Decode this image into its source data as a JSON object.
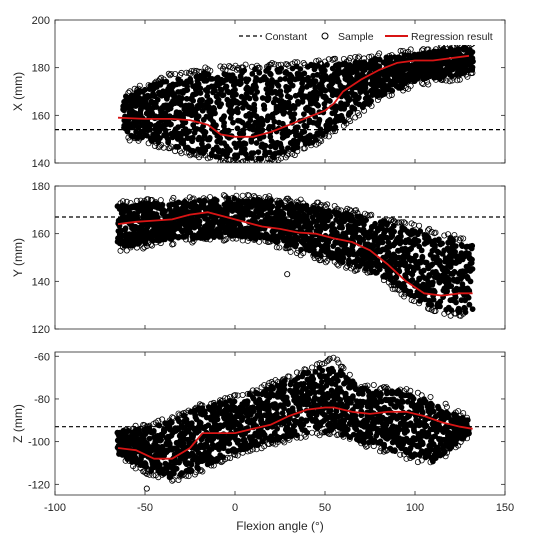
{
  "chart_data": [
    {
      "type": "scatter",
      "panel": "X",
      "ylabel": "X (mm)",
      "xlabel": "",
      "xlim": [
        -100,
        150
      ],
      "ylim": [
        140,
        200
      ],
      "xticks": [
        "-100",
        "-50",
        "0",
        "50",
        "100",
        "150"
      ],
      "xticklabels_visible": false,
      "yticks": [
        "140",
        "160",
        "180",
        "200"
      ],
      "constant": 154,
      "legend": {
        "placement": "top-right",
        "entries": [
          "Constant",
          "Sample",
          "Regression result"
        ]
      },
      "sample_bands": [
        {
          "x": [
            -62,
            -40,
            -20,
            0,
            20,
            40,
            60,
            80,
            100,
            120,
            132
          ],
          "y_low": [
            152,
            148,
            144,
            141,
            142,
            147,
            157,
            168,
            174,
            176,
            178
          ],
          "y_high": [
            168,
            175,
            178,
            179,
            180,
            181,
            182,
            184,
            186,
            188,
            189
          ]
        }
      ],
      "series": [
        {
          "name": "Regression result",
          "x": [
            -65,
            -50,
            -35,
            -25,
            -15,
            -8,
            0,
            10,
            20,
            30,
            40,
            50,
            55,
            60,
            70,
            80,
            90,
            100,
            110,
            120,
            130
          ],
          "y": [
            159,
            158.5,
            158.5,
            158,
            156,
            152,
            151,
            151,
            153,
            156,
            159,
            162,
            165,
            170,
            175,
            179,
            182,
            183,
            183,
            184,
            185
          ]
        }
      ],
      "outliers": []
    },
    {
      "type": "scatter",
      "panel": "Y",
      "ylabel": "Y (mm)",
      "xlabel": "",
      "xlim": [
        -100,
        150
      ],
      "ylim": [
        120,
        180
      ],
      "xticks": [
        "-100",
        "-50",
        "0",
        "50",
        "100",
        "150"
      ],
      "xticklabels_visible": false,
      "yticks": [
        "120",
        "140",
        "160",
        "180"
      ],
      "constant": 167,
      "sample_bands": [
        {
          "x": [
            -65,
            -40,
            -20,
            0,
            20,
            40,
            60,
            80,
            100,
            120,
            132
          ],
          "y_low": [
            154,
            157,
            158,
            159,
            157,
            152,
            148,
            143,
            132,
            127,
            127
          ],
          "y_high": [
            172,
            173,
            174,
            175,
            174,
            172,
            169,
            166,
            162,
            158,
            155
          ]
        }
      ],
      "series": [
        {
          "name": "Regression result",
          "x": [
            -65,
            -55,
            -45,
            -35,
            -25,
            -15,
            -5,
            5,
            15,
            25,
            35,
            45,
            55,
            65,
            75,
            85,
            95,
            105,
            115,
            125,
            132
          ],
          "y": [
            164,
            165,
            165.5,
            166,
            168,
            169,
            167,
            165,
            163,
            162,
            160.5,
            160,
            158,
            156.5,
            153,
            147,
            140,
            135,
            134,
            135,
            135
          ]
        }
      ],
      "outliers": [
        {
          "x": 29,
          "y": 143
        }
      ]
    },
    {
      "type": "scatter",
      "panel": "Z",
      "ylabel": "Z (mm)",
      "xlabel": "Flexion angle (°)",
      "xlim": [
        -100,
        150
      ],
      "ylim": [
        -125,
        -58
      ],
      "xticks": [
        "-100",
        "-50",
        "0",
        "50",
        "100",
        "150"
      ],
      "xticklabels_visible": true,
      "yticks": [
        "-120",
        "-100",
        "-80",
        "-60"
      ],
      "constant": -93,
      "sample_bands": [
        {
          "x": [
            -65,
            -50,
            -35,
            -20,
            0,
            20,
            40,
            55,
            70,
            90,
            110,
            130
          ],
          "y_low": [
            -106,
            -113,
            -117,
            -113,
            -105,
            -100,
            -96,
            -95,
            -100,
            -105,
            -110,
            -96
          ],
          "y_high": [
            -95,
            -94,
            -90,
            -84,
            -80,
            -74,
            -67,
            -62,
            -75,
            -76,
            -81,
            -90
          ]
        }
      ],
      "series": [
        {
          "name": "Regression result",
          "x": [
            -65,
            -55,
            -45,
            -35,
            -25,
            -18,
            -10,
            0,
            10,
            20,
            30,
            40,
            50,
            55,
            65,
            75,
            85,
            95,
            105,
            115,
            125,
            132
          ],
          "y": [
            -103,
            -104,
            -108,
            -108,
            -103,
            -96,
            -96,
            -96,
            -94,
            -92,
            -88,
            -85,
            -84,
            -84,
            -86,
            -87,
            -86,
            -86,
            -88,
            -91,
            -93,
            -94
          ]
        }
      ],
      "outliers": [
        {
          "x": -49,
          "y": -122
        }
      ]
    }
  ],
  "colors": {
    "sample_marker": "#000000",
    "regression_line": "#d81414",
    "constant_line": "#000000",
    "axes": "#262626"
  }
}
